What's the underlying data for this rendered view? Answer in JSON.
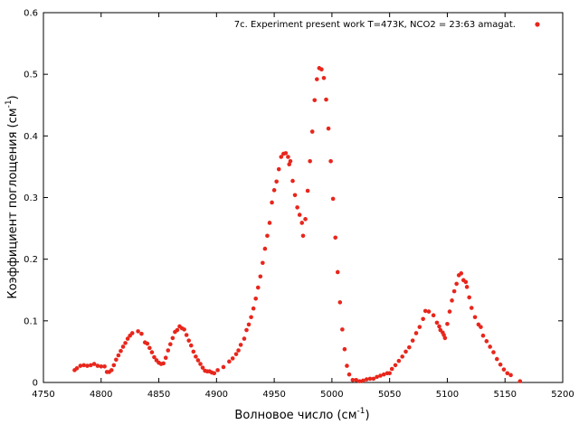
{
  "chart_data": {
    "type": "scatter",
    "xlabel": "Волновое число (см",
    "xlabel_sup": "-1",
    "xlabel_end": ")",
    "ylabel": "Коэффициент поглощения (см",
    "ylabel_sup": "-1",
    "ylabel_end": ")",
    "xlim": [
      4750,
      5200
    ],
    "ylim": [
      0,
      0.6
    ],
    "xticks": [
      4750,
      4800,
      4850,
      4900,
      4950,
      5000,
      5050,
      5100,
      5150,
      5200
    ],
    "yticks": [
      0,
      0.1,
      0.2,
      0.3,
      0.4,
      0.5,
      0.6
    ],
    "legend_position": "top-right",
    "grid": false,
    "series": [
      {
        "name": "7c. Experiment  present work T=473K, NCO2 = 23:63 amagat.",
        "color": "#e8261c",
        "points": [
          [
            4777,
            0.02
          ],
          [
            4779,
            0.023
          ],
          [
            4782,
            0.027
          ],
          [
            4785,
            0.028
          ],
          [
            4788,
            0.027
          ],
          [
            4791,
            0.028
          ],
          [
            4794,
            0.03
          ],
          [
            4797,
            0.027
          ],
          [
            4800,
            0.026
          ],
          [
            4803,
            0.026
          ],
          [
            4805,
            0.017
          ],
          [
            4807,
            0.017
          ],
          [
            4809,
            0.02
          ],
          [
            4811,
            0.028
          ],
          [
            4813,
            0.037
          ],
          [
            4815,
            0.044
          ],
          [
            4817,
            0.051
          ],
          [
            4819,
            0.058
          ],
          [
            4821,
            0.064
          ],
          [
            4823,
            0.071
          ],
          [
            4825,
            0.076
          ],
          [
            4827,
            0.08
          ],
          [
            4832,
            0.083
          ],
          [
            4835,
            0.079
          ],
          [
            4838,
            0.065
          ],
          [
            4840,
            0.063
          ],
          [
            4842,
            0.056
          ],
          [
            4844,
            0.049
          ],
          [
            4846,
            0.041
          ],
          [
            4848,
            0.036
          ],
          [
            4850,
            0.032
          ],
          [
            4852,
            0.03
          ],
          [
            4854,
            0.031
          ],
          [
            4856,
            0.04
          ],
          [
            4858,
            0.052
          ],
          [
            4860,
            0.062
          ],
          [
            4862,
            0.072
          ],
          [
            4864,
            0.082
          ],
          [
            4866,
            0.085
          ],
          [
            4868,
            0.091
          ],
          [
            4870,
            0.088
          ],
          [
            4872,
            0.086
          ],
          [
            4874,
            0.077
          ],
          [
            4876,
            0.068
          ],
          [
            4878,
            0.06
          ],
          [
            4880,
            0.05
          ],
          [
            4882,
            0.042
          ],
          [
            4884,
            0.036
          ],
          [
            4886,
            0.03
          ],
          [
            4888,
            0.024
          ],
          [
            4890,
            0.019
          ],
          [
            4892,
            0.018
          ],
          [
            4894,
            0.018
          ],
          [
            4896,
            0.016
          ],
          [
            4898,
            0.015
          ],
          [
            4901,
            0.02
          ],
          [
            4906,
            0.025
          ],
          [
            4911,
            0.034
          ],
          [
            4914,
            0.039
          ],
          [
            4917,
            0.046
          ],
          [
            4919,
            0.052
          ],
          [
            4921,
            0.061
          ],
          [
            4924,
            0.071
          ],
          [
            4926,
            0.085
          ],
          [
            4928,
            0.094
          ],
          [
            4930,
            0.106
          ],
          [
            4932,
            0.12
          ],
          [
            4934,
            0.136
          ],
          [
            4936,
            0.154
          ],
          [
            4938,
            0.172
          ],
          [
            4940,
            0.194
          ],
          [
            4942,
            0.217
          ],
          [
            4944,
            0.238
          ],
          [
            4946,
            0.259
          ],
          [
            4948,
            0.292
          ],
          [
            4950,
            0.312
          ],
          [
            4952,
            0.326
          ],
          [
            4954,
            0.346
          ],
          [
            4956,
            0.366
          ],
          [
            4958,
            0.371
          ],
          [
            4960,
            0.372
          ],
          [
            4962,
            0.366
          ],
          [
            4963,
            0.354
          ],
          [
            4964,
            0.359
          ],
          [
            4966,
            0.327
          ],
          [
            4968,
            0.304
          ],
          [
            4970,
            0.284
          ],
          [
            4972,
            0.272
          ],
          [
            4974,
            0.259
          ],
          [
            4975,
            0.238
          ],
          [
            4977,
            0.265
          ],
          [
            4979,
            0.311
          ],
          [
            4981,
            0.359
          ],
          [
            4983,
            0.407
          ],
          [
            4985,
            0.458
          ],
          [
            4987,
            0.492
          ],
          [
            4989,
            0.51
          ],
          [
            4991,
            0.508
          ],
          [
            4993,
            0.494
          ],
          [
            4995,
            0.459
          ],
          [
            4997,
            0.412
          ],
          [
            4999,
            0.359
          ],
          [
            5001,
            0.298
          ],
          [
            5003,
            0.235
          ],
          [
            5005,
            0.179
          ],
          [
            5007,
            0.13
          ],
          [
            5009,
            0.086
          ],
          [
            5011,
            0.054
          ],
          [
            5013,
            0.027
          ],
          [
            5015,
            0.013
          ],
          [
            5018,
            0.004
          ],
          [
            5021,
            0.004
          ],
          [
            5024,
            0.002
          ],
          [
            5027,
            0.003
          ],
          [
            5030,
            0.005
          ],
          [
            5033,
            0.006
          ],
          [
            5036,
            0.006
          ],
          [
            5039,
            0.009
          ],
          [
            5042,
            0.011
          ],
          [
            5045,
            0.013
          ],
          [
            5048,
            0.015
          ],
          [
            5050,
            0.015
          ],
          [
            5052,
            0.022
          ],
          [
            5055,
            0.028
          ],
          [
            5058,
            0.035
          ],
          [
            5061,
            0.042
          ],
          [
            5064,
            0.05
          ],
          [
            5067,
            0.057
          ],
          [
            5070,
            0.068
          ],
          [
            5073,
            0.08
          ],
          [
            5076,
            0.09
          ],
          [
            5079,
            0.103
          ],
          [
            5081,
            0.116
          ],
          [
            5084,
            0.115
          ],
          [
            5088,
            0.109
          ],
          [
            5091,
            0.097
          ],
          [
            5093,
            0.091
          ],
          [
            5094,
            0.085
          ],
          [
            5096,
            0.081
          ],
          [
            5097,
            0.077
          ],
          [
            5098,
            0.072
          ],
          [
            5100,
            0.095
          ],
          [
            5102,
            0.115
          ],
          [
            5104,
            0.133
          ],
          [
            5106,
            0.148
          ],
          [
            5108,
            0.16
          ],
          [
            5110,
            0.174
          ],
          [
            5112,
            0.177
          ],
          [
            5114,
            0.166
          ],
          [
            5116,
            0.163
          ],
          [
            5117,
            0.155
          ],
          [
            5119,
            0.138
          ],
          [
            5121,
            0.121
          ],
          [
            5124,
            0.106
          ],
          [
            5127,
            0.094
          ],
          [
            5129,
            0.09
          ],
          [
            5131,
            0.076
          ],
          [
            5134,
            0.067
          ],
          [
            5137,
            0.058
          ],
          [
            5140,
            0.049
          ],
          [
            5143,
            0.038
          ],
          [
            5146,
            0.029
          ],
          [
            5149,
            0.021
          ],
          [
            5152,
            0.015
          ],
          [
            5155,
            0.012
          ],
          [
            5163,
            0.002
          ]
        ]
      }
    ]
  }
}
